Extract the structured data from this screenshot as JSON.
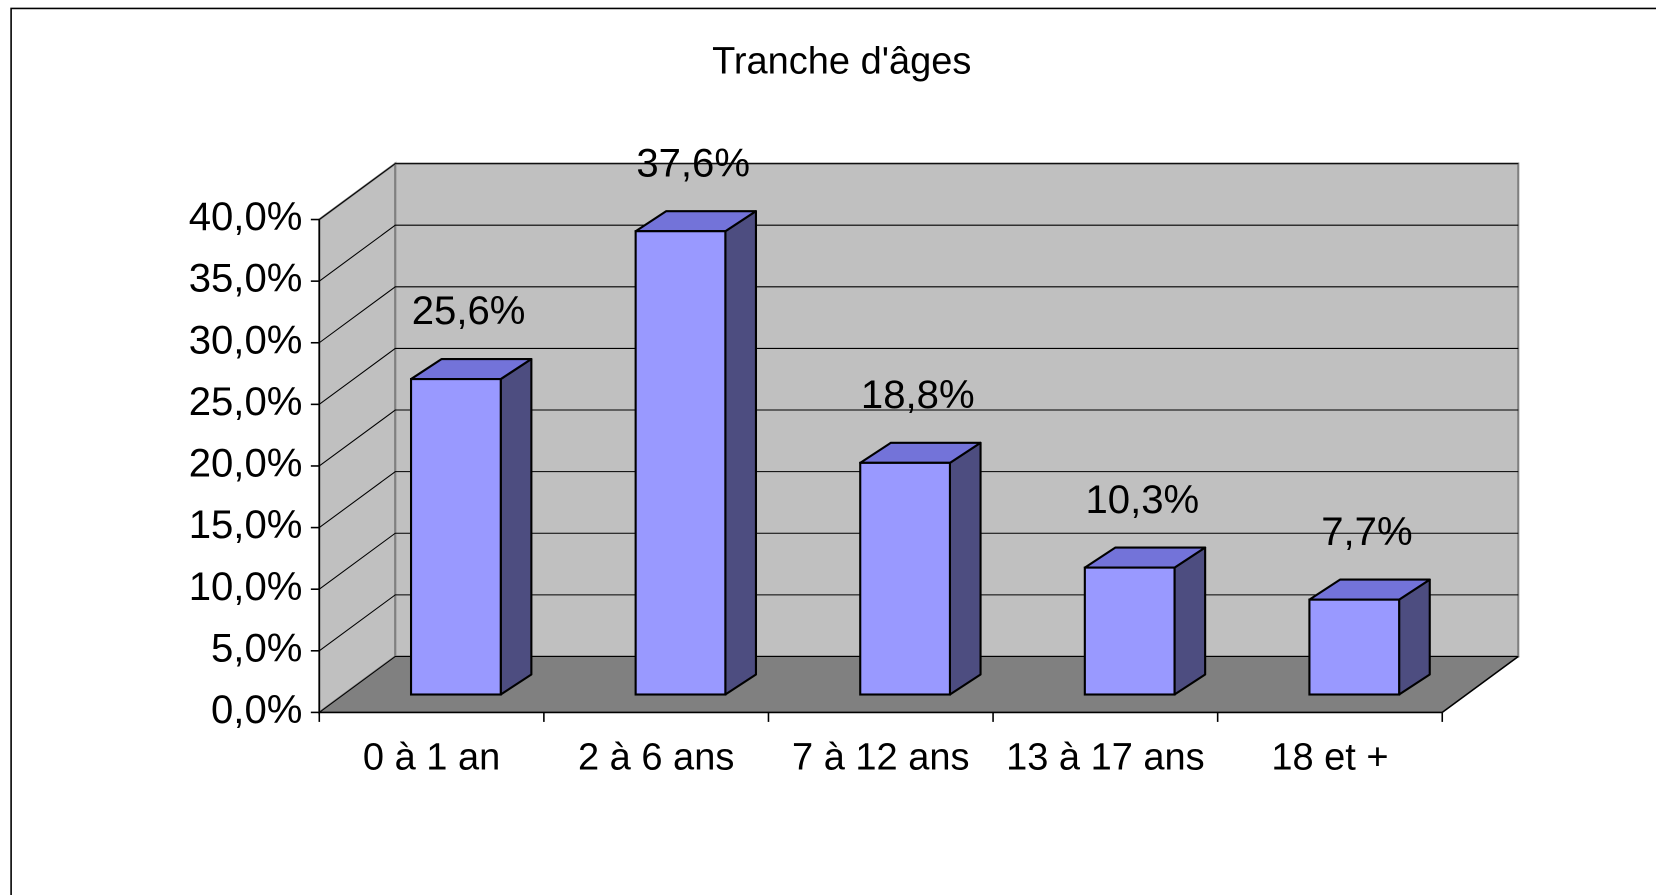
{
  "chart_data": {
    "type": "bar3d",
    "title": "Tranche d'âges",
    "categories": [
      "0 à 1 an",
      "2 à 6 ans",
      "7 à 12 ans",
      "13 à 17 ans",
      "18 et +"
    ],
    "values": [
      25.6,
      37.6,
      18.8,
      10.3,
      7.7
    ],
    "value_labels": [
      "25,6%",
      "37,6%",
      "18,8%",
      "10,3%",
      "7,7%"
    ],
    "color": "#9999ff",
    "ylim": [
      0,
      40
    ],
    "yticks": [
      {
        "value": 0,
        "label": "0,0%"
      },
      {
        "value": 5,
        "label": "5,0%"
      },
      {
        "value": 10,
        "label": "10,0%"
      },
      {
        "value": 15,
        "label": "15,0%"
      },
      {
        "value": 20,
        "label": "20,0%"
      },
      {
        "value": 25,
        "label": "25,0%"
      },
      {
        "value": 30,
        "label": "30,0%"
      },
      {
        "value": 35,
        "label": "35,0%"
      },
      {
        "value": 40,
        "label": "40,0%"
      }
    ],
    "grid": true
  }
}
